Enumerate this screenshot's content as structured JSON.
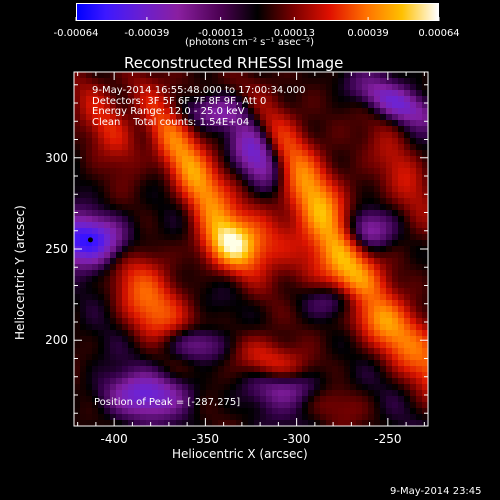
{
  "chart_data": {
    "type": "heatmap",
    "title": "Reconstructed RHESSI Image",
    "xlabel": "Heliocentric X (arcsec)",
    "ylabel": "Heliocentric Y (arcsec)",
    "xlim": [
      -422,
      -228
    ],
    "ylim": [
      153,
      347
    ],
    "x_ticks": [
      -400,
      -350,
      -300,
      -250
    ],
    "y_ticks": [
      200,
      250,
      300
    ],
    "x_tick_labels": [
      "-400",
      "-350",
      "-300",
      "-250"
    ],
    "y_tick_labels": [
      "200",
      "250",
      "300"
    ],
    "colorbar": {
      "range": [
        -0.00064,
        0.00064
      ],
      "ticks": [
        -0.00064,
        -0.00039,
        -0.00013,
        0.00013,
        0.00039,
        0.00064
      ],
      "tick_labels": [
        "-0.00064",
        "-0.00039",
        "-0.00013",
        "0.00013",
        "0.00039",
        "0.00064"
      ],
      "unit_label": "(photons cm⁻² s⁻¹ asec⁻²)"
    },
    "info_lines": [
      "9-May-2014 16:55:48.000 to 17:00:34.000",
      "Detectors: 3F 5F 6F 7F 8F 9F, Att 0",
      "Energy Range: 12.0 - 25.0 keV",
      "Clean    Total counts: 1.54E+04"
    ],
    "peak_text": "Position of Peak = [-287,275]",
    "peak_position": [
      -287,
      275
    ],
    "min_marker_position": [
      -413,
      255
    ],
    "colors": {
      "background": "#000000",
      "text": "#ffffff"
    }
  },
  "footer_timestamp": "9-May-2014 23:45"
}
